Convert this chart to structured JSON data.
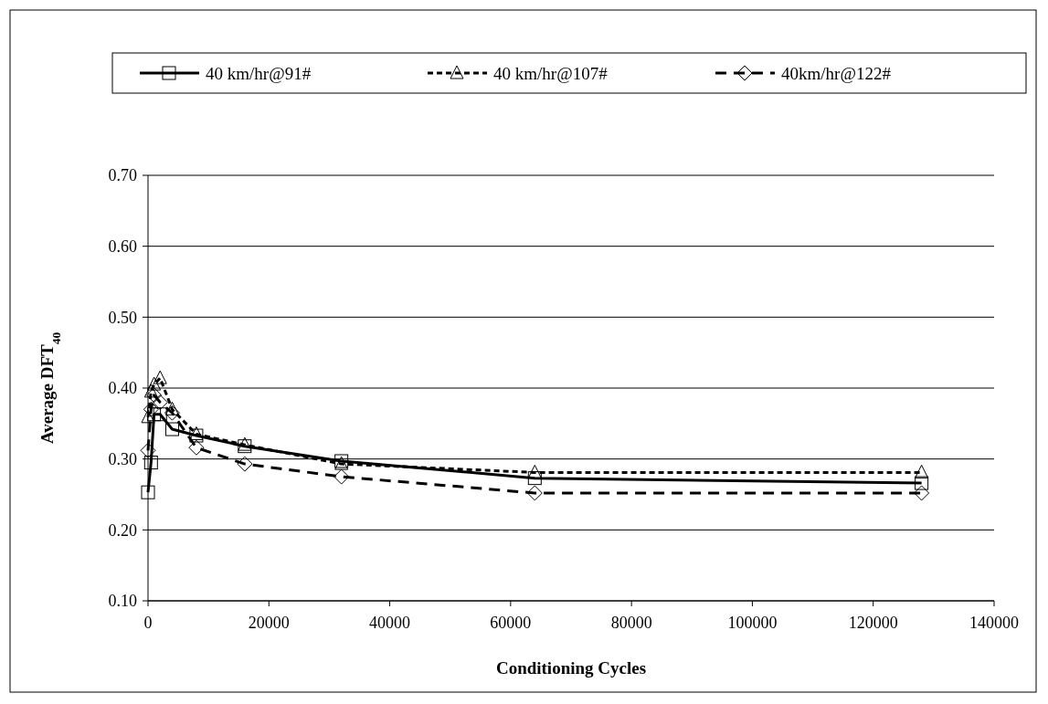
{
  "chart_data": {
    "type": "line",
    "xlabel": "Conditioning Cycles",
    "ylabel": "Average DFT$_{40}$",
    "x": [
      0,
      500,
      1000,
      2000,
      4000,
      8000,
      16000,
      32000,
      64000,
      128000
    ],
    "series": [
      {
        "name": "40 km/hr@91#",
        "color": "#000000",
        "marker": "square",
        "line_style": "solid",
        "values": [
          0.253,
          0.295,
          0.363,
          0.363,
          0.342,
          0.333,
          0.318,
          0.297,
          0.273,
          0.266
        ]
      },
      {
        "name": "40 km/hr@107#",
        "color": "#000000",
        "marker": "triangle",
        "line_style": "dotted",
        "values": [
          0.359,
          0.395,
          0.405,
          0.414,
          0.37,
          0.335,
          0.32,
          0.293,
          0.281,
          0.281
        ]
      },
      {
        "name": "40km/hr@122#",
        "color": "#000000",
        "marker": "diamond",
        "line_style": "dashed",
        "values": [
          0.312,
          0.37,
          0.39,
          0.38,
          0.365,
          0.316,
          0.293,
          0.275,
          0.252,
          0.252
        ]
      }
    ],
    "xlim": [
      0,
      140000
    ],
    "xticks": [
      0,
      20000,
      40000,
      60000,
      80000,
      100000,
      120000,
      140000
    ],
    "ylim": [
      0.1,
      0.7
    ],
    "yticks": [
      {
        "value": 0.1,
        "label": "0.10"
      },
      {
        "value": 0.2,
        "label": "0.20"
      },
      {
        "value": 0.3,
        "label": "0.30"
      },
      {
        "value": 0.4,
        "label": "0.40"
      },
      {
        "value": 0.5,
        "label": "0.50"
      },
      {
        "value": 0.6,
        "label": "0.60"
      },
      {
        "value": 0.7,
        "label": "0.70"
      }
    ],
    "grid": "y",
    "legend": "top"
  }
}
